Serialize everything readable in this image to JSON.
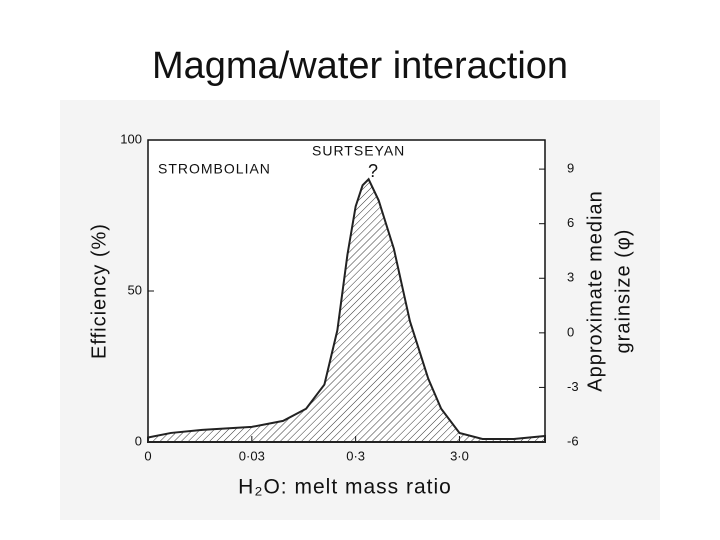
{
  "chart_data": {
    "type": "area",
    "title": "Magma/water interaction",
    "xlabel": "H₂O: melt mass ratio",
    "ylabel": "Efficiency (%)",
    "y2label": [
      "Approximate median",
      "grainsize (φ)"
    ],
    "annotations": [
      "STROMBOLIAN",
      "SURTSEYAN",
      "?"
    ],
    "xscale": "log",
    "xlim": [
      0.003,
      20
    ],
    "xticks": [
      {
        "value": 0.003,
        "label": "0"
      },
      {
        "value": 0.03,
        "label": "0·03"
      },
      {
        "value": 0.3,
        "label": "0·3"
      },
      {
        "value": 3,
        "label": "3·0"
      }
    ],
    "ylim": [
      0,
      100
    ],
    "yticks": [
      0,
      50,
      100
    ],
    "y2lim": [
      -6,
      10.6
    ],
    "y2ticks": [
      9,
      6,
      3,
      0,
      -3,
      -6
    ],
    "color": "#222222",
    "series": [
      {
        "name": "Efficiency",
        "x": [
          0.003,
          0.005,
          0.01,
          0.03,
          0.06,
          0.1,
          0.15,
          0.2,
          0.25,
          0.3,
          0.35,
          0.4,
          0.5,
          0.7,
          1.0,
          1.5,
          2,
          3,
          5,
          10,
          20
        ],
        "values": [
          1.5,
          3,
          4,
          5,
          7,
          11,
          19,
          37,
          62,
          78,
          85,
          87,
          80,
          64,
          40,
          21,
          11,
          3,
          1,
          1,
          2
        ]
      }
    ]
  }
}
